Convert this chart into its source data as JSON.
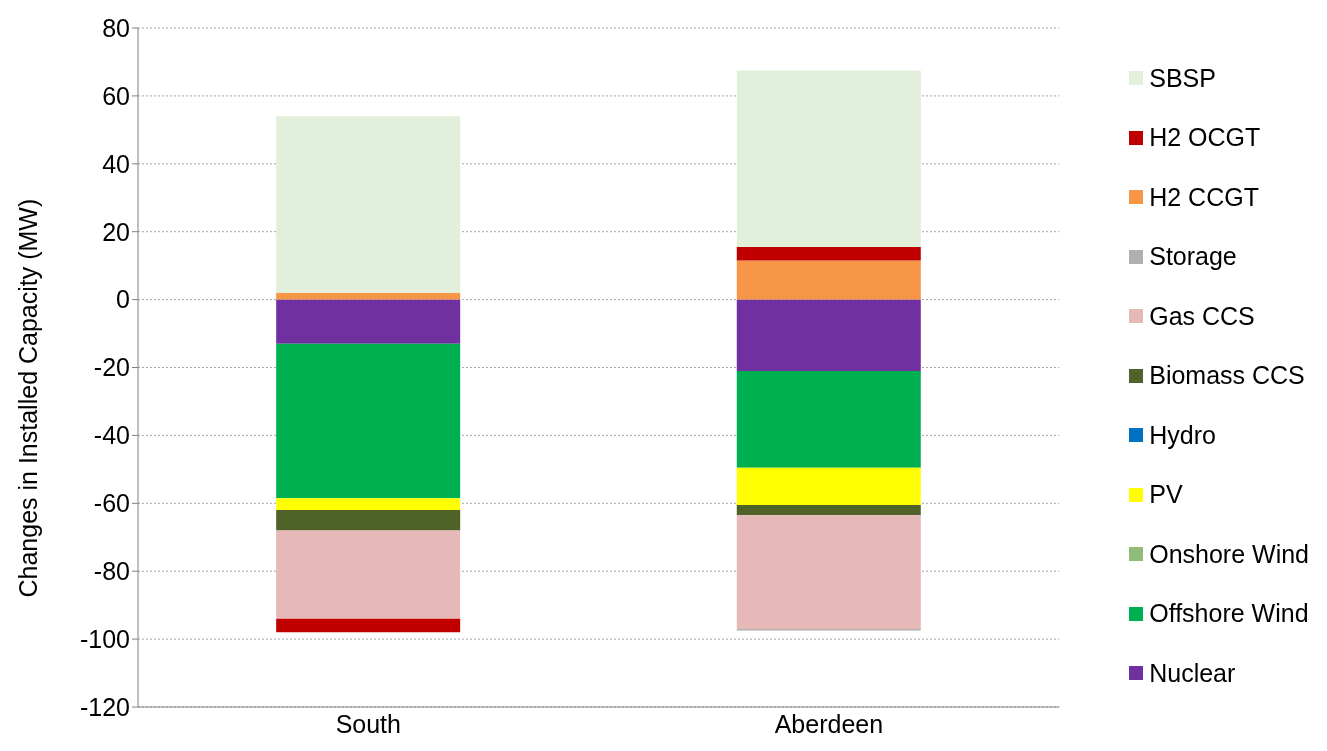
{
  "chart_data": {
    "type": "bar",
    "stacked": true,
    "ylabel": "Changes in Installed Capacity (MW)",
    "categories": [
      "South",
      "Aberdeen"
    ],
    "series": [
      {
        "name": "Nuclear",
        "color": "#7030a0",
        "values": [
          -13,
          -21
        ]
      },
      {
        "name": "Offshore Wind",
        "color": "#00b050",
        "values": [
          -45.5,
          -28.5
        ]
      },
      {
        "name": "Onshore Wind",
        "color": "#8fbc7a",
        "values": [
          0,
          0
        ]
      },
      {
        "name": "PV",
        "color": "#ffff00",
        "values": [
          -3.5,
          -11
        ]
      },
      {
        "name": "Hydro",
        "color": "#0070c0",
        "values": [
          0,
          0
        ]
      },
      {
        "name": "Biomass CCS",
        "color": "#4f6228",
        "values": [
          -6,
          -3
        ]
      },
      {
        "name": "Gas CCS",
        "color": "#e6b8b7",
        "values": [
          -26,
          -33.5
        ]
      },
      {
        "name": "Storage",
        "color": "#b0b0b0",
        "values": [
          0,
          -0.5
        ]
      },
      {
        "name": "H2 CCGT",
        "color": "#f79646",
        "values": [
          2,
          11.5
        ]
      },
      {
        "name": "H2 OCGT",
        "color": "#c00000",
        "values": [
          -4,
          4
        ]
      },
      {
        "name": "SBSP",
        "color": "#e2efda",
        "values": [
          52,
          52
        ]
      }
    ],
    "ylim": [
      -120,
      80
    ],
    "yticks": [
      -120,
      -100,
      -80,
      -60,
      -40,
      -20,
      0,
      20,
      40,
      60,
      80
    ],
    "grid": "y",
    "legend": "right"
  }
}
